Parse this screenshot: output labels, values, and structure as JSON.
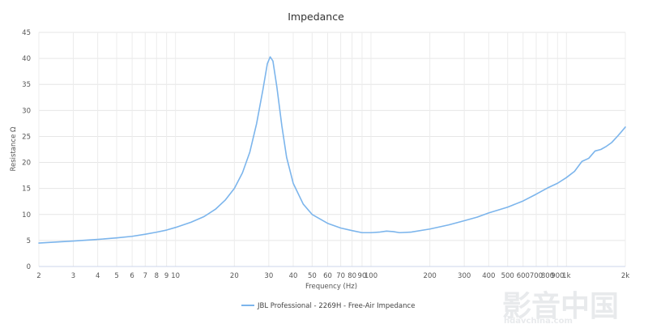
{
  "chart_data": {
    "type": "line",
    "title": "Impedance",
    "xlabel": "Frequency (Hz)",
    "ylabel": "Resistance Ω",
    "x_scale": "log",
    "xlim": [
      2,
      2000
    ],
    "ylim": [
      0,
      45
    ],
    "y_ticks": [
      0,
      5,
      10,
      15,
      20,
      25,
      30,
      35,
      40,
      45
    ],
    "y_tick_labels": [
      "0",
      "5",
      "10",
      "15",
      "20",
      "25",
      "30",
      "35",
      "40",
      "45"
    ],
    "x_ticks": [
      2,
      3,
      4,
      5,
      6,
      7,
      8,
      9,
      10,
      20,
      30,
      40,
      50,
      60,
      70,
      80,
      90,
      100,
      200,
      300,
      400,
      500,
      600,
      700,
      800,
      900,
      1000,
      2000
    ],
    "x_tick_labels": [
      "2",
      "3",
      "4",
      "5",
      "6",
      "7",
      "8",
      "9",
      "10",
      "20",
      "30",
      "40",
      "50",
      "60",
      "70",
      "80",
      "90",
      "100",
      "200",
      "300",
      "400",
      "500",
      "600",
      "700",
      "800",
      "900",
      "1k",
      "2k"
    ],
    "grid": true,
    "legend_position": "bottom",
    "series": [
      {
        "name": "JBL Professional - 2269H - Free-Air Impedance",
        "color": "#7cb5ec",
        "points": [
          [
            2,
            4.5
          ],
          [
            3,
            4.9
          ],
          [
            4,
            5.2
          ],
          [
            5,
            5.5
          ],
          [
            6,
            5.8
          ],
          [
            7,
            6.2
          ],
          [
            8,
            6.6
          ],
          [
            9,
            7.0
          ],
          [
            10,
            7.5
          ],
          [
            12,
            8.5
          ],
          [
            14,
            9.6
          ],
          [
            16,
            11.0
          ],
          [
            18,
            12.8
          ],
          [
            20,
            15.0
          ],
          [
            22,
            18.0
          ],
          [
            24,
            22.0
          ],
          [
            26,
            27.5
          ],
          [
            28,
            34.0
          ],
          [
            29.5,
            39.0
          ],
          [
            30.5,
            40.3
          ],
          [
            31.5,
            39.5
          ],
          [
            33,
            34.5
          ],
          [
            35,
            27.0
          ],
          [
            37,
            21.0
          ],
          [
            40,
            16.0
          ],
          [
            45,
            12.0
          ],
          [
            50,
            10.0
          ],
          [
            60,
            8.3
          ],
          [
            70,
            7.4
          ],
          [
            80,
            6.9
          ],
          [
            90,
            6.5
          ],
          [
            100,
            6.5
          ],
          [
            110,
            6.6
          ],
          [
            120,
            6.8
          ],
          [
            130,
            6.7
          ],
          [
            140,
            6.5
          ],
          [
            160,
            6.6
          ],
          [
            200,
            7.2
          ],
          [
            250,
            8.0
          ],
          [
            300,
            8.8
          ],
          [
            350,
            9.5
          ],
          [
            400,
            10.3
          ],
          [
            500,
            11.4
          ],
          [
            600,
            12.6
          ],
          [
            700,
            13.9
          ],
          [
            800,
            15.1
          ],
          [
            900,
            16.0
          ],
          [
            1000,
            17.1
          ],
          [
            1100,
            18.3
          ],
          [
            1200,
            20.2
          ],
          [
            1300,
            20.8
          ],
          [
            1400,
            22.2
          ],
          [
            1500,
            22.5
          ],
          [
            1600,
            23.1
          ],
          [
            1700,
            23.8
          ],
          [
            1800,
            24.8
          ],
          [
            1900,
            25.8
          ],
          [
            2000,
            26.8
          ]
        ]
      }
    ]
  },
  "watermark": {
    "main": "影音中国",
    "sub": "hdavchina.com"
  }
}
